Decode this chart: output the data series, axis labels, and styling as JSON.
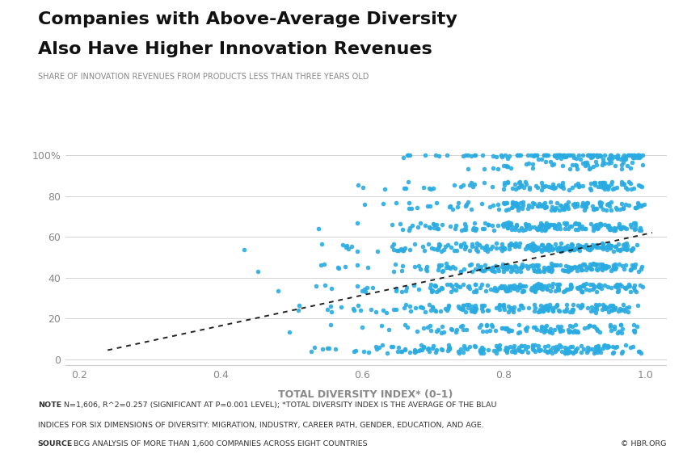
{
  "title_line1": "Companies with Above-Average Diversity",
  "title_line2": "Also Have Higher Innovation Revenues",
  "subtitle": "SHARE OF INNOVATION REVENUES FROM PRODUCTS LESS THAN THREE YEARS OLD",
  "xlabel": "TOTAL DIVERSITY INDEX* (0–1)",
  "note_bold1": "NOTE",
  "note_rest1": "  N=1,606, R^2=0.257 (SIGNIFICANT AT P=0.001 LEVEL); *TOTAL DIVERSITY INDEX IS THE AVERAGE OF THE BLAU",
  "note_line2": "INDICES FOR SIX DIMENSIONS OF DIVERSITY: MIGRATION, INDUSTRY, CAREER PATH, GENDER, EDUCATION, AND AGE.",
  "note_bold3": "SOURCE",
  "note_rest3": "  BCG ANALYSIS OF MORE THAN 1,600 COMPANIES ACROSS EIGHT COUNTRIES",
  "copyright": "© HBR.ORG",
  "dot_color": "#29ABE2",
  "trendline_color": "#222222",
  "background_color": "#ffffff",
  "title_color": "#111111",
  "subtitle_color": "#888888",
  "axis_tick_color": "#888888",
  "note_color": "#333333",
  "grid_color": "#cccccc",
  "xlim": [
    0.18,
    1.03
  ],
  "ylim": [
    -3,
    107
  ],
  "xticks": [
    0.2,
    0.4,
    0.6,
    0.8,
    1.0
  ],
  "yticks": [
    0,
    20,
    40,
    60,
    80,
    100
  ],
  "ytick_labels": [
    "0",
    "20",
    "40",
    "60",
    "80",
    "100%"
  ],
  "trend_x0": 0.24,
  "trend_x1": 1.01,
  "trend_y0": 4.5,
  "trend_y1": 62.0,
  "n_points": 1606,
  "random_seed": 42,
  "dot_size": 16
}
